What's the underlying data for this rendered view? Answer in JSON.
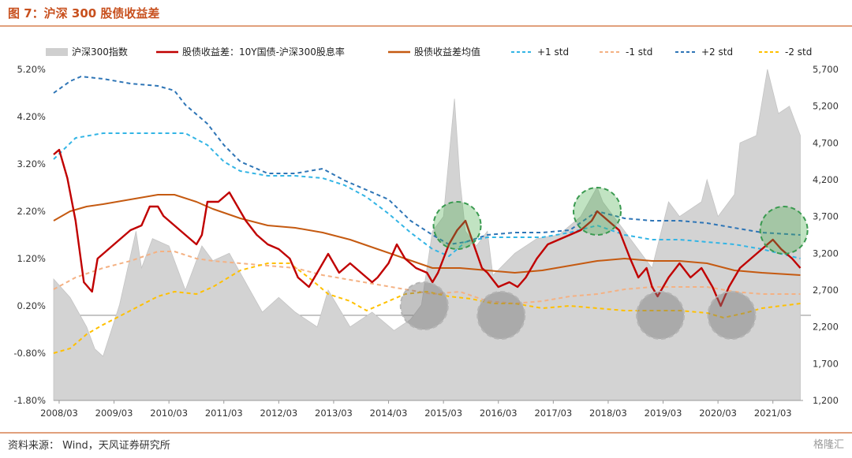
{
  "title": "图 7：沪深 300 股债收益差",
  "source": "资料来源：  Wind，天风证券研究所",
  "watermark": "格隆汇",
  "chart_data": {
    "type": "line",
    "x_ticks": [
      "2008/03",
      "2009/03",
      "2010/03",
      "2011/03",
      "2012/03",
      "2013/03",
      "2014/03",
      "2015/03",
      "2016/03",
      "2017/03",
      "2018/03",
      "2019/03",
      "2020/03",
      "2021/03"
    ],
    "x_range": [
      2008.1,
      2021.75
    ],
    "y_left": {
      "ticks": [
        "5.20%",
        "4.20%",
        "3.20%",
        "2.20%",
        "1.20%",
        "0.20%",
        "-0.80%",
        "-1.80%"
      ],
      "range": [
        -1.8,
        5.2
      ]
    },
    "y_right": {
      "ticks": [
        "5,700",
        "5,200",
        "4,700",
        "4,200",
        "3,700",
        "3,200",
        "2,700",
        "2,200",
        "1,700",
        "1,200"
      ],
      "range": [
        1200,
        5700
      ]
    },
    "legend": [
      {
        "name": "沪深300指数",
        "color": "#cfcfcf",
        "style": "area"
      },
      {
        "name": "股债收益差：10Y国债-沪深300股息率",
        "color": "#c00000",
        "style": "solid"
      },
      {
        "name": "股债收益差均值",
        "color": "#c55a11",
        "style": "solid"
      },
      {
        "name": "+1 std",
        "color": "#33b5e5",
        "style": "dashed"
      },
      {
        "name": "-1 std",
        "color": "#f4b183",
        "style": "dashed"
      },
      {
        "name": "+2 std",
        "color": "#2e75b6",
        "style": "dashed"
      },
      {
        "name": "-2 std",
        "color": "#ffc000",
        "style": "dashed"
      }
    ],
    "series": {
      "csi300_index": [
        [
          2008.1,
          2850
        ],
        [
          2008.4,
          2600
        ],
        [
          2008.7,
          2200
        ],
        [
          2008.85,
          1900
        ],
        [
          2009.0,
          1800
        ],
        [
          2009.3,
          2500
        ],
        [
          2009.6,
          3500
        ],
        [
          2009.7,
          3000
        ],
        [
          2009.9,
          3400
        ],
        [
          2010.2,
          3300
        ],
        [
          2010.5,
          2700
        ],
        [
          2010.8,
          3300
        ],
        [
          2011.0,
          3100
        ],
        [
          2011.3,
          3200
        ],
        [
          2011.6,
          2800
        ],
        [
          2011.9,
          2400
        ],
        [
          2012.2,
          2600
        ],
        [
          2012.5,
          2400
        ],
        [
          2012.9,
          2200
        ],
        [
          2013.1,
          2700
        ],
        [
          2013.5,
          2200
        ],
        [
          2013.9,
          2400
        ],
        [
          2014.3,
          2150
        ],
        [
          2014.6,
          2300
        ],
        [
          2014.8,
          2500
        ],
        [
          2015.0,
          3500
        ],
        [
          2015.2,
          3700
        ],
        [
          2015.4,
          5300
        ],
        [
          2015.5,
          4200
        ],
        [
          2015.6,
          3500
        ],
        [
          2015.8,
          3300
        ],
        [
          2016.0,
          3500
        ],
        [
          2016.1,
          2900
        ],
        [
          2016.5,
          3200
        ],
        [
          2016.9,
          3400
        ],
        [
          2017.3,
          3450
        ],
        [
          2017.7,
          3700
        ],
        [
          2018.0,
          4100
        ],
        [
          2018.1,
          3900
        ],
        [
          2018.5,
          3500
        ],
        [
          2018.9,
          3100
        ],
        [
          2019.0,
          3000
        ],
        [
          2019.3,
          3900
        ],
        [
          2019.5,
          3700
        ],
        [
          2019.9,
          3900
        ],
        [
          2020.0,
          4200
        ],
        [
          2020.2,
          3700
        ],
        [
          2020.5,
          4000
        ],
        [
          2020.6,
          4700
        ],
        [
          2020.9,
          4800
        ],
        [
          2021.1,
          5700
        ],
        [
          2021.3,
          5100
        ],
        [
          2021.5,
          5200
        ],
        [
          2021.7,
          4800
        ]
      ],
      "spread": [
        [
          2008.1,
          3.4
        ],
        [
          2008.2,
          3.5
        ],
        [
          2008.35,
          2.9
        ],
        [
          2008.5,
          2.0
        ],
        [
          2008.65,
          0.7
        ],
        [
          2008.8,
          0.5
        ],
        [
          2008.9,
          1.2
        ],
        [
          2009.1,
          1.4
        ],
        [
          2009.3,
          1.6
        ],
        [
          2009.5,
          1.8
        ],
        [
          2009.7,
          1.9
        ],
        [
          2009.85,
          2.3
        ],
        [
          2010.0,
          2.3
        ],
        [
          2010.1,
          2.1
        ],
        [
          2010.3,
          1.9
        ],
        [
          2010.5,
          1.7
        ],
        [
          2010.7,
          1.5
        ],
        [
          2010.8,
          1.7
        ],
        [
          2010.9,
          2.4
        ],
        [
          2011.1,
          2.4
        ],
        [
          2011.3,
          2.6
        ],
        [
          2011.5,
          2.2
        ],
        [
          2011.6,
          2.0
        ],
        [
          2011.8,
          1.7
        ],
        [
          2012.0,
          1.5
        ],
        [
          2012.2,
          1.4
        ],
        [
          2012.4,
          1.2
        ],
        [
          2012.55,
          0.8
        ],
        [
          2012.75,
          0.6
        ],
        [
          2012.9,
          0.9
        ],
        [
          2013.1,
          1.3
        ],
        [
          2013.3,
          0.9
        ],
        [
          2013.5,
          1.1
        ],
        [
          2013.7,
          0.9
        ],
        [
          2013.9,
          0.7
        ],
        [
          2014.0,
          0.8
        ],
        [
          2014.2,
          1.1
        ],
        [
          2014.35,
          1.5
        ],
        [
          2014.5,
          1.2
        ],
        [
          2014.7,
          1.0
        ],
        [
          2014.9,
          0.9
        ],
        [
          2015.0,
          0.7
        ],
        [
          2015.1,
          0.9
        ],
        [
          2015.3,
          1.5
        ],
        [
          2015.45,
          1.8
        ],
        [
          2015.6,
          2.0
        ],
        [
          2015.75,
          1.5
        ],
        [
          2015.9,
          1.0
        ],
        [
          2016.0,
          0.9
        ],
        [
          2016.2,
          0.6
        ],
        [
          2016.4,
          0.7
        ],
        [
          2016.55,
          0.6
        ],
        [
          2016.7,
          0.8
        ],
        [
          2016.9,
          1.2
        ],
        [
          2017.1,
          1.5
        ],
        [
          2017.3,
          1.6
        ],
        [
          2017.5,
          1.7
        ],
        [
          2017.7,
          1.8
        ],
        [
          2017.9,
          2.0
        ],
        [
          2018.0,
          2.2
        ],
        [
          2018.2,
          2.0
        ],
        [
          2018.4,
          1.8
        ],
        [
          2018.6,
          1.2
        ],
        [
          2018.75,
          0.8
        ],
        [
          2018.9,
          1.0
        ],
        [
          2019.0,
          0.6
        ],
        [
          2019.1,
          0.4
        ],
        [
          2019.3,
          0.8
        ],
        [
          2019.5,
          1.1
        ],
        [
          2019.7,
          0.8
        ],
        [
          2019.9,
          1.0
        ],
        [
          2020.0,
          0.8
        ],
        [
          2020.1,
          0.6
        ],
        [
          2020.25,
          0.2
        ],
        [
          2020.4,
          0.6
        ],
        [
          2020.6,
          1.0
        ],
        [
          2020.8,
          1.2
        ],
        [
          2021.0,
          1.4
        ],
        [
          2021.2,
          1.6
        ],
        [
          2021.35,
          1.4
        ],
        [
          2021.55,
          1.2
        ],
        [
          2021.7,
          1.0
        ]
      ],
      "mean": [
        [
          2008.1,
          2.0
        ],
        [
          2008.4,
          2.2
        ],
        [
          2008.7,
          2.3
        ],
        [
          2009.0,
          2.35
        ],
        [
          2009.5,
          2.45
        ],
        [
          2010.0,
          2.55
        ],
        [
          2010.3,
          2.55
        ],
        [
          2010.7,
          2.4
        ],
        [
          2011.0,
          2.25
        ],
        [
          2011.5,
          2.05
        ],
        [
          2012.0,
          1.9
        ],
        [
          2012.5,
          1.85
        ],
        [
          2013.0,
          1.75
        ],
        [
          2013.5,
          1.6
        ],
        [
          2014.0,
          1.4
        ],
        [
          2014.5,
          1.2
        ],
        [
          2015.0,
          1.0
        ],
        [
          2015.5,
          1.0
        ],
        [
          2016.0,
          0.95
        ],
        [
          2016.5,
          0.9
        ],
        [
          2017.0,
          0.95
        ],
        [
          2017.5,
          1.05
        ],
        [
          2018.0,
          1.15
        ],
        [
          2018.5,
          1.2
        ],
        [
          2019.0,
          1.15
        ],
        [
          2019.5,
          1.15
        ],
        [
          2020.0,
          1.1
        ],
        [
          2020.5,
          0.95
        ],
        [
          2021.0,
          0.9
        ],
        [
          2021.7,
          0.85
        ]
      ],
      "plus1": [
        [
          2008.1,
          3.3
        ],
        [
          2008.5,
          3.75
        ],
        [
          2009.0,
          3.85
        ],
        [
          2009.5,
          3.85
        ],
        [
          2010.0,
          3.85
        ],
        [
          2010.5,
          3.85
        ],
        [
          2010.9,
          3.6
        ],
        [
          2011.2,
          3.25
        ],
        [
          2011.5,
          3.05
        ],
        [
          2012.0,
          2.95
        ],
        [
          2012.5,
          2.95
        ],
        [
          2013.0,
          2.9
        ],
        [
          2013.4,
          2.75
        ],
        [
          2013.8,
          2.5
        ],
        [
          2014.2,
          2.15
        ],
        [
          2014.6,
          1.75
        ],
        [
          2015.0,
          1.4
        ],
        [
          2015.3,
          1.25
        ],
        [
          2015.6,
          1.55
        ],
        [
          2016.0,
          1.65
        ],
        [
          2016.5,
          1.65
        ],
        [
          2017.0,
          1.65
        ],
        [
          2017.5,
          1.75
        ],
        [
          2018.0,
          1.9
        ],
        [
          2018.5,
          1.7
        ],
        [
          2019.0,
          1.6
        ],
        [
          2019.5,
          1.6
        ],
        [
          2020.0,
          1.55
        ],
        [
          2020.5,
          1.5
        ],
        [
          2021.0,
          1.4
        ],
        [
          2021.7,
          1.2
        ]
      ],
      "minus1": [
        [
          2008.1,
          0.55
        ],
        [
          2008.5,
          0.8
        ],
        [
          2009.0,
          1.0
        ],
        [
          2009.5,
          1.15
        ],
        [
          2010.0,
          1.35
        ],
        [
          2010.3,
          1.35
        ],
        [
          2010.7,
          1.2
        ],
        [
          2011.0,
          1.15
        ],
        [
          2011.5,
          1.1
        ],
        [
          2012.0,
          1.05
        ],
        [
          2012.5,
          1.0
        ],
        [
          2013.0,
          0.85
        ],
        [
          2013.5,
          0.75
        ],
        [
          2014.0,
          0.65
        ],
        [
          2014.5,
          0.55
        ],
        [
          2015.0,
          0.45
        ],
        [
          2015.5,
          0.5
        ],
        [
          2016.0,
          0.3
        ],
        [
          2016.5,
          0.25
        ],
        [
          2017.0,
          0.3
        ],
        [
          2017.5,
          0.4
        ],
        [
          2018.0,
          0.45
        ],
        [
          2018.5,
          0.55
        ],
        [
          2019.0,
          0.6
        ],
        [
          2019.5,
          0.6
        ],
        [
          2020.0,
          0.6
        ],
        [
          2020.5,
          0.5
        ],
        [
          2021.0,
          0.45
        ],
        [
          2021.7,
          0.45
        ]
      ],
      "plus2": [
        [
          2008.1,
          4.7
        ],
        [
          2008.4,
          4.95
        ],
        [
          2008.6,
          5.05
        ],
        [
          2009.0,
          5.0
        ],
        [
          2009.5,
          4.9
        ],
        [
          2010.0,
          4.85
        ],
        [
          2010.3,
          4.75
        ],
        [
          2010.5,
          4.45
        ],
        [
          2010.9,
          4.05
        ],
        [
          2011.2,
          3.6
        ],
        [
          2011.5,
          3.25
        ],
        [
          2012.0,
          3.0
        ],
        [
          2012.5,
          3.0
        ],
        [
          2013.0,
          3.1
        ],
        [
          2013.4,
          2.85
        ],
        [
          2013.8,
          2.65
        ],
        [
          2014.2,
          2.45
        ],
        [
          2014.6,
          2.0
        ],
        [
          2015.0,
          1.7
        ],
        [
          2015.3,
          1.5
        ],
        [
          2015.6,
          1.55
        ],
        [
          2016.0,
          1.7
        ],
        [
          2016.5,
          1.75
        ],
        [
          2017.0,
          1.75
        ],
        [
          2017.5,
          1.8
        ],
        [
          2018.0,
          2.2
        ],
        [
          2018.5,
          2.05
        ],
        [
          2019.0,
          2.0
        ],
        [
          2019.5,
          2.0
        ],
        [
          2020.0,
          1.95
        ],
        [
          2020.5,
          1.85
        ],
        [
          2021.0,
          1.75
        ],
        [
          2021.7,
          1.7
        ]
      ],
      "minus2": [
        [
          2008.1,
          -0.8
        ],
        [
          2008.4,
          -0.7
        ],
        [
          2008.7,
          -0.4
        ],
        [
          2009.0,
          -0.2
        ],
        [
          2009.5,
          0.1
        ],
        [
          2010.0,
          0.4
        ],
        [
          2010.3,
          0.5
        ],
        [
          2010.7,
          0.45
        ],
        [
          2011.0,
          0.6
        ],
        [
          2011.5,
          0.95
        ],
        [
          2012.0,
          1.1
        ],
        [
          2012.4,
          1.1
        ],
        [
          2012.8,
          0.75
        ],
        [
          2013.1,
          0.45
        ],
        [
          2013.5,
          0.3
        ],
        [
          2013.8,
          0.1
        ],
        [
          2014.1,
          0.25
        ],
        [
          2014.5,
          0.45
        ],
        [
          2014.9,
          0.5
        ],
        [
          2015.3,
          0.4
        ],
        [
          2015.7,
          0.35
        ],
        [
          2016.1,
          0.25
        ],
        [
          2016.5,
          0.25
        ],
        [
          2017.0,
          0.15
        ],
        [
          2017.5,
          0.2
        ],
        [
          2018.0,
          0.15
        ],
        [
          2018.5,
          0.1
        ],
        [
          2019.0,
          0.1
        ],
        [
          2019.5,
          0.1
        ],
        [
          2020.0,
          0.05
        ],
        [
          2020.3,
          -0.05
        ],
        [
          2020.7,
          0.05
        ],
        [
          2021.0,
          0.15
        ],
        [
          2021.7,
          0.25
        ]
      ]
    },
    "annotations": {
      "green_circles": [
        [
          2015.45,
          1.9
        ],
        [
          2018.0,
          2.2
        ],
        [
          2021.4,
          1.8
        ]
      ],
      "gray_circles": [
        [
          2014.85,
          0.2
        ],
        [
          2016.25,
          0.0
        ],
        [
          2019.15,
          0.0
        ],
        [
          2020.45,
          0.0
        ]
      ]
    }
  }
}
